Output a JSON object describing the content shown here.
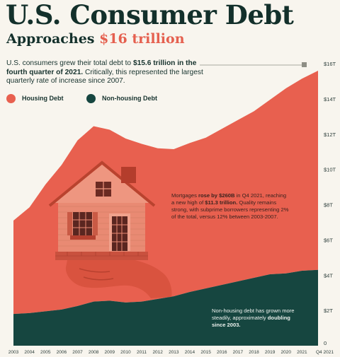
{
  "header": {
    "title": "U.S. Consumer Debt",
    "subtitle_prefix": "Approaches ",
    "subtitle_accent": "$16 trillion"
  },
  "intro": {
    "part1": "U.S. consumers grew their total debt to ",
    "part2": "$15.6 trillion in the fourth quarter of 2021.",
    "part3": " Critically, this represented the largest quarterly rate of increase since 2007."
  },
  "legend": {
    "housing": "Housing Debt",
    "nonhousing": "Non-housing Debt"
  },
  "colors": {
    "housing": "#e8604f",
    "nonhousing": "#164640",
    "background": "#f8f5ee",
    "title": "#13302b",
    "accent": "#e5604f"
  },
  "annotations": {
    "housing": {
      "t1": "Mortgages ",
      "t2": "rose by $260B",
      "t3": " in Q4 2021, reaching a new high of ",
      "t4": "$11.3 trillion.",
      "t5": " Quality remains strong, with subprime borrowers representing 2% of the total, versus 12% between 2003-2007."
    },
    "nonhousing": {
      "t1": "Non-housing debt has grown more steadily, approximately ",
      "t2": "doubling since 2003."
    }
  },
  "illustration": "house-held-in-hand",
  "chart_data": {
    "type": "area",
    "stacked": true,
    "y_unit": "trillions of USD",
    "ylim": [
      0,
      16
    ],
    "yticks": [
      "0",
      "$2T",
      "$4T",
      "$6T",
      "$8T",
      "$10T",
      "$12T",
      "$14T",
      "$16T"
    ],
    "xticks": [
      "2003",
      "2004",
      "2005",
      "2006",
      "2007",
      "2008",
      "2009",
      "2010",
      "2011",
      "2012",
      "2013",
      "2014",
      "2015",
      "2016",
      "2017",
      "2018",
      "2019",
      "2020",
      "2021",
      "Q4 2021"
    ],
    "x": [
      2003,
      2004,
      2005,
      2006,
      2007,
      2008,
      2009,
      2010,
      2011,
      2012,
      2013,
      2014,
      2015,
      2016,
      2017,
      2018,
      2019,
      2020,
      2021,
      2022
    ],
    "series": [
      {
        "name": "Non-housing Debt",
        "values": [
          1.8,
          1.85,
          1.95,
          2.05,
          2.25,
          2.5,
          2.55,
          2.45,
          2.5,
          2.65,
          2.8,
          3.05,
          3.25,
          3.45,
          3.65,
          3.85,
          4.05,
          4.1,
          4.25,
          4.3
        ]
      },
      {
        "name": "Housing Debt",
        "values": [
          5.3,
          6.0,
          7.2,
          8.2,
          9.4,
          9.95,
          9.7,
          9.3,
          8.95,
          8.55,
          8.35,
          8.45,
          8.55,
          8.85,
          9.15,
          9.45,
          9.9,
          10.5,
          10.9,
          11.3
        ]
      }
    ],
    "grid": false,
    "legend_position": "top-left",
    "final_total": 15.6
  }
}
